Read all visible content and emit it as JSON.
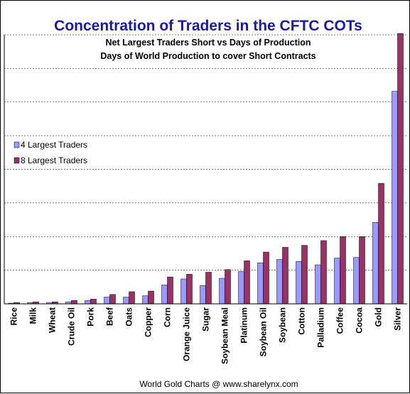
{
  "chart_data": {
    "type": "bar",
    "title": "Concentration of Traders in the CFTC COTs",
    "subtitle_1": "Net Largest Traders Short vs Days of Production",
    "subtitle_2": "Days of World Production to cover Short Contracts",
    "footer": "World Gold Charts @ www.sharelynx.com",
    "grid": true,
    "legend_position": "left",
    "ylim": [
      0,
      400
    ],
    "categories": [
      "Rice",
      "Milk",
      "Wheat",
      "Crude Oil",
      "Pork",
      "Beef",
      "Oats",
      "Copper",
      "Corn",
      "Orange Juice",
      "Sugar",
      "Soybean Meal",
      "Platinum",
      "Soybean Oil",
      "Soybean",
      "Cotton",
      "Palladium",
      "Coffee",
      "Cocoa",
      "Gold",
      "Silver"
    ],
    "series": [
      {
        "name": "4 Largest Traders",
        "color": "#9999ff",
        "values": [
          1,
          2,
          2,
          3,
          5,
          10,
          10,
          12,
          28,
          37,
          27,
          38,
          48,
          61,
          66,
          63,
          58,
          68,
          69,
          121,
          316
        ]
      },
      {
        "name": "8 Largest Traders",
        "color": "#993366",
        "values": [
          2,
          3,
          3,
          5,
          7,
          14,
          18,
          19,
          40,
          44,
          47,
          51,
          64,
          77,
          84,
          87,
          94,
          100,
          100,
          179,
          402
        ]
      }
    ]
  }
}
